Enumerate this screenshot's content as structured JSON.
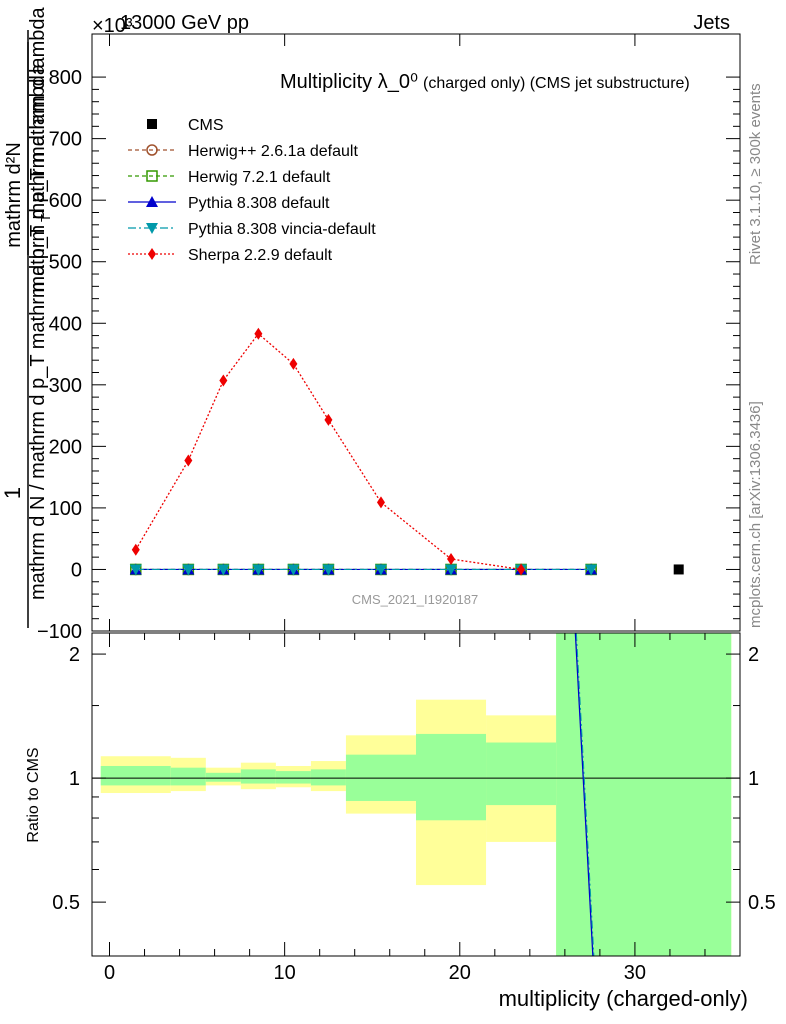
{
  "header": {
    "left": "13000 GeV pp",
    "right": "Jets",
    "exponent": "×10³"
  },
  "side": {
    "rivet": "Rivet 3.1.10, ≥ 300k events",
    "mcplots": "mcplots.cern.ch [arXiv:1306.3436]"
  },
  "chart_data": [
    {
      "type": "line",
      "title": "Multiplicity λ_0⁰",
      "title_suffix": "(charged only) (CMS jet substructure)",
      "watermark": "CMS_2021_I1920187",
      "ylabel_top": "1",
      "ylabel_bottom": "mathrm d N / mathrm d p_T mathrm d p_T mathrm d lambda",
      "ylabel_numerator": "mathrm d²N",
      "ylabel_denominator": "mathrm d p_T mathrm d lambda",
      "ylabel_sub": "T",
      "ylim": [
        -100,
        870
      ],
      "xlim": [
        -1,
        36
      ],
      "yticks": [
        -100,
        0,
        100,
        200,
        300,
        400,
        500,
        600,
        700,
        800
      ],
      "legend": [
        {
          "name": "CMS",
          "color": "#000000",
          "marker": "square-filled",
          "dash": "none"
        },
        {
          "name": "Herwig++ 2.6.1a default",
          "color": "#a0522d",
          "marker": "circle-open",
          "dash": "4,3"
        },
        {
          "name": "Herwig 7.2.1 default",
          "color": "#339900",
          "marker": "square-open",
          "dash": "4,3"
        },
        {
          "name": "Pythia 8.308 default",
          "color": "#0000cc",
          "marker": "triangle-up",
          "dash": "none"
        },
        {
          "name": "Pythia 8.308 vincia-default",
          "color": "#0099aa",
          "marker": "triangle-down",
          "dash": "8,3,2,3"
        },
        {
          "name": "Sherpa 2.2.9 default",
          "color": "#ee0000",
          "marker": "diamond",
          "dash": "2,2"
        }
      ],
      "cms": {
        "x": [
          32.5
        ],
        "y": [
          0
        ]
      },
      "mc_x": [
        1.5,
        4.5,
        6.5,
        8.5,
        10.5,
        12.5,
        15.5,
        19.5,
        23.5,
        27.5
      ],
      "mc_zero": [
        0,
        0,
        0,
        0,
        0,
        0,
        0,
        0,
        0,
        0
      ],
      "sherpa": {
        "x": [
          1.5,
          4.5,
          6.5,
          8.5,
          10.5,
          12.5,
          15.5,
          19.5,
          23.5
        ],
        "y": [
          32,
          177,
          307,
          383,
          334,
          243,
          109,
          17,
          0
        ]
      }
    },
    {
      "type": "area",
      "ylabel": "Ratio to CMS",
      "xlabel": "multiplicity (charged-only)",
      "ylim": [
        0.37,
        2.25
      ],
      "xticks": [
        0,
        10,
        20,
        30
      ],
      "yticks": [
        0.5,
        1,
        2
      ],
      "bins": [
        {
          "lo": -0.5,
          "hi": 3.5,
          "y_lo": 0.92,
          "y_hi": 1.13,
          "g_lo": 0.96,
          "g_hi": 1.07
        },
        {
          "lo": 3.5,
          "hi": 5.5,
          "y_lo": 0.93,
          "y_hi": 1.12,
          "g_lo": 0.96,
          "g_hi": 1.06
        },
        {
          "lo": 5.5,
          "hi": 7.5,
          "y_lo": 0.96,
          "y_hi": 1.06,
          "g_lo": 0.98,
          "g_hi": 1.03
        },
        {
          "lo": 7.5,
          "hi": 9.5,
          "y_lo": 0.94,
          "y_hi": 1.09,
          "g_lo": 0.97,
          "g_hi": 1.05
        },
        {
          "lo": 9.5,
          "hi": 11.5,
          "y_lo": 0.95,
          "y_hi": 1.07,
          "g_lo": 0.97,
          "g_hi": 1.04
        },
        {
          "lo": 11.5,
          "hi": 13.5,
          "y_lo": 0.93,
          "y_hi": 1.1,
          "g_lo": 0.96,
          "g_hi": 1.05
        },
        {
          "lo": 13.5,
          "hi": 17.5,
          "y_lo": 0.82,
          "y_hi": 1.27,
          "g_lo": 0.88,
          "g_hi": 1.14
        },
        {
          "lo": 17.5,
          "hi": 21.5,
          "y_lo": 0.55,
          "y_hi": 1.55,
          "g_lo": 0.79,
          "g_hi": 1.28
        },
        {
          "lo": 21.5,
          "hi": 25.5,
          "y_lo": 0.7,
          "y_hi": 1.42,
          "g_lo": 0.86,
          "g_hi": 1.22
        },
        {
          "lo": 25.5,
          "hi": 35.5,
          "y_lo": 0.37,
          "y_hi": 2.25,
          "g_lo": 0.37,
          "g_hi": 2.25
        }
      ],
      "pythia_line": {
        "x": [
          26.6,
          27.6
        ],
        "y": [
          2.25,
          0.37
        ]
      }
    }
  ]
}
